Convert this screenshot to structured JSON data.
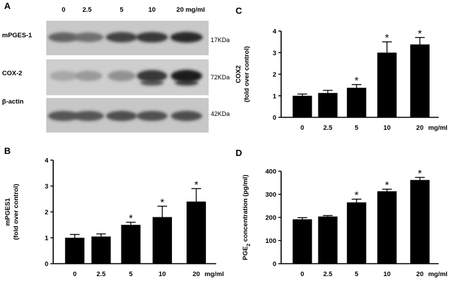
{
  "figure": {
    "panels": [
      "A",
      "B",
      "C",
      "D"
    ],
    "significance_mark": "*"
  },
  "blot": {
    "lane_labels": [
      "0",
      "2.5",
      "5",
      "10",
      "20 mg/ml"
    ],
    "rows": [
      {
        "name": "mPGES-1",
        "mw": "17KDa",
        "intensity": [
          0.55,
          0.48,
          0.72,
          0.78,
          0.86
        ]
      },
      {
        "name": "COX-2",
        "mw": "72KDa",
        "intensity": [
          0.18,
          0.25,
          0.3,
          0.78,
          0.92
        ]
      },
      {
        "name": "β-actin",
        "mw": "42KDa",
        "intensity": [
          0.62,
          0.62,
          0.66,
          0.65,
          0.66
        ]
      }
    ]
  },
  "chart_data": [
    {
      "panel": "B",
      "type": "bar",
      "categories": [
        "0",
        "2.5",
        "5",
        "10",
        "20"
      ],
      "x_unit": "mg/ml",
      "values": [
        1.0,
        1.05,
        1.5,
        1.8,
        2.4
      ],
      "errors": [
        0.13,
        0.1,
        0.1,
        0.42,
        0.5
      ],
      "significant": [
        false,
        false,
        true,
        true,
        true
      ],
      "ylabel_lines": [
        "mPGES1",
        "(fold over control)"
      ],
      "ylim": [
        0,
        4
      ],
      "yticks": [
        "0",
        "1",
        "2",
        "3",
        "4"
      ]
    },
    {
      "panel": "C",
      "type": "bar",
      "categories": [
        "0",
        "2.5",
        "5",
        "10",
        "20"
      ],
      "x_unit": "mg/ml",
      "values": [
        1.0,
        1.13,
        1.37,
        3.0,
        3.38
      ],
      "errors": [
        0.08,
        0.12,
        0.15,
        0.5,
        0.32
      ],
      "significant": [
        false,
        false,
        true,
        true,
        true
      ],
      "ylabel_lines": [
        "COX2",
        "(fold over control)"
      ],
      "ylim": [
        0,
        4
      ],
      "yticks": [
        "0",
        "1",
        "2",
        "3",
        "4"
      ]
    },
    {
      "panel": "D",
      "type": "bar",
      "categories": [
        "0",
        "2.5",
        "5",
        "10",
        "20"
      ],
      "x_unit": "mg/ml",
      "values": [
        192,
        204,
        265,
        313,
        362
      ],
      "errors": [
        7,
        4,
        14,
        9,
        11
      ],
      "significant": [
        false,
        false,
        true,
        true,
        true
      ],
      "ylabel_parts": [
        "PGE",
        "2",
        " concentration (pg/ml)"
      ],
      "ylim": [
        0,
        400
      ],
      "yticks": [
        "0",
        "100",
        "200",
        "300",
        "400"
      ]
    }
  ]
}
